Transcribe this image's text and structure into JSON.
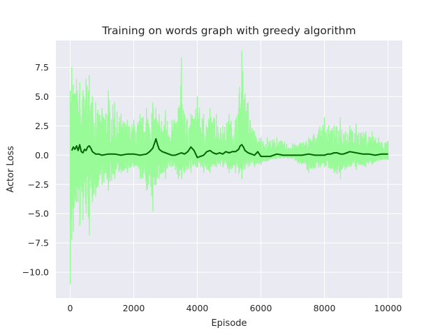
{
  "chart_data": {
    "type": "line",
    "title": "Training on words graph with greedy algorithm",
    "xlabel": "Episode",
    "ylabel": "Actor Loss",
    "xlim": [
      -450,
      10450
    ],
    "ylim": [
      -12.2,
      9.8
    ],
    "xticks": [
      0,
      2000,
      4000,
      6000,
      8000,
      10000
    ],
    "xtick_labels": [
      "0",
      "2000",
      "4000",
      "6000",
      "8000",
      "10000"
    ],
    "yticks": [
      -10.0,
      -7.5,
      -5.0,
      -2.5,
      0.0,
      2.5,
      5.0,
      7.5
    ],
    "ytick_labels": [
      "−10.0",
      "−7.5",
      "−5.0",
      "−2.5",
      "0.0",
      "2.5",
      "5.0",
      "7.5"
    ],
    "grid": true,
    "background": "#EAEAF2",
    "series": [
      {
        "color": "#98FB98",
        "envelope": {
          "x": [
            0,
            50,
            100,
            200,
            300,
            400,
            500,
            600,
            700,
            800,
            1000,
            1200,
            1400,
            1600,
            1800,
            2000,
            2200,
            2400,
            2600,
            2700,
            2800,
            3000,
            3200,
            3400,
            3500,
            3600,
            3800,
            4000,
            4200,
            4400,
            4600,
            4800,
            5000,
            5200,
            5400,
            5600,
            5800,
            6000,
            6200,
            6500,
            7000,
            7500,
            8000,
            8300,
            8500,
            8800,
            9000,
            9300,
            9500,
            9700,
            10000
          ],
          "upper": [
            5.5,
            7.5,
            6.0,
            6.5,
            6.2,
            5.5,
            6.5,
            6.8,
            5.0,
            4.5,
            4.0,
            5.5,
            4.5,
            3.5,
            3.0,
            3.0,
            3.5,
            4.0,
            4.5,
            4.0,
            3.5,
            3.8,
            3.0,
            4.0,
            8.3,
            3.5,
            3.5,
            5.0,
            3.5,
            4.0,
            3.5,
            2.5,
            3.5,
            3.0,
            8.9,
            4.5,
            2.0,
            1.5,
            1.5,
            1.5,
            1.0,
            1.5,
            3.2,
            2.5,
            3.2,
            2.5,
            2.7,
            2.0,
            2.0,
            1.5,
            1.2
          ],
          "lower": [
            -11.0,
            -7.2,
            -6.5,
            -4.0,
            -6.0,
            -5.5,
            -5.0,
            -6.8,
            -4.0,
            -3.5,
            -2.5,
            -3.0,
            -2.0,
            -1.5,
            -1.5,
            -1.0,
            -2.0,
            -3.0,
            -4.8,
            -2.5,
            -2.0,
            -2.0,
            -1.0,
            -2.0,
            -2.0,
            -1.5,
            -1.5,
            -1.0,
            -1.5,
            -1.5,
            -1.0,
            -1.0,
            -1.5,
            -1.5,
            -2.0,
            -1.0,
            -1.0,
            -0.8,
            -0.5,
            -0.3,
            -0.3,
            -1.5,
            -1.0,
            -1.5,
            -2.0,
            -1.0,
            -1.2,
            -1.0,
            -0.8,
            -0.5,
            -0.4
          ]
        }
      },
      {
        "color": "#006400",
        "x": [
          50,
          100,
          150,
          200,
          250,
          300,
          350,
          400,
          450,
          500,
          550,
          600,
          650,
          700,
          800,
          900,
          1000,
          1200,
          1400,
          1600,
          1800,
          2000,
          2200,
          2400,
          2500,
          2600,
          2650,
          2700,
          2750,
          2800,
          2900,
          3000,
          3100,
          3200,
          3300,
          3400,
          3500,
          3600,
          3700,
          3800,
          3900,
          4000,
          4100,
          4200,
          4300,
          4400,
          4500,
          4600,
          4700,
          4800,
          4900,
          5000,
          5100,
          5200,
          5300,
          5350,
          5400,
          5450,
          5500,
          5600,
          5700,
          5800,
          5900,
          6000,
          6100,
          6200,
          6300,
          6500,
          6700,
          7000,
          7300,
          7500,
          7700,
          7900,
          8000,
          8100,
          8200,
          8300,
          8400,
          8500,
          8600,
          8700,
          8800,
          9000,
          9200,
          9400,
          9600,
          9800,
          10000
        ],
        "values": [
          0.4,
          0.7,
          0.5,
          0.8,
          0.4,
          0.9,
          0.3,
          0.2,
          0.5,
          0.4,
          0.7,
          0.8,
          0.6,
          0.3,
          0.1,
          0.1,
          0.0,
          0.1,
          0.1,
          0.0,
          0.1,
          0.1,
          0.0,
          0.1,
          0.3,
          0.6,
          1.0,
          1.4,
          0.9,
          0.5,
          0.3,
          0.2,
          0.1,
          0.0,
          0.0,
          0.1,
          0.2,
          0.1,
          0.3,
          0.7,
          0.4,
          -0.2,
          -0.1,
          0.0,
          0.3,
          0.4,
          0.2,
          0.1,
          0.2,
          0.1,
          0.3,
          0.2,
          0.3,
          0.3,
          0.5,
          0.8,
          0.9,
          0.7,
          0.4,
          0.2,
          0.1,
          0.0,
          0.3,
          -0.1,
          -0.1,
          -0.1,
          -0.1,
          0.1,
          0.0,
          0.0,
          0.0,
          0.1,
          0.0,
          0.0,
          0.0,
          0.1,
          0.1,
          0.2,
          0.2,
          0.1,
          0.1,
          0.2,
          0.3,
          0.2,
          0.1,
          0.1,
          0.0,
          0.1,
          0.1
        ]
      }
    ]
  }
}
